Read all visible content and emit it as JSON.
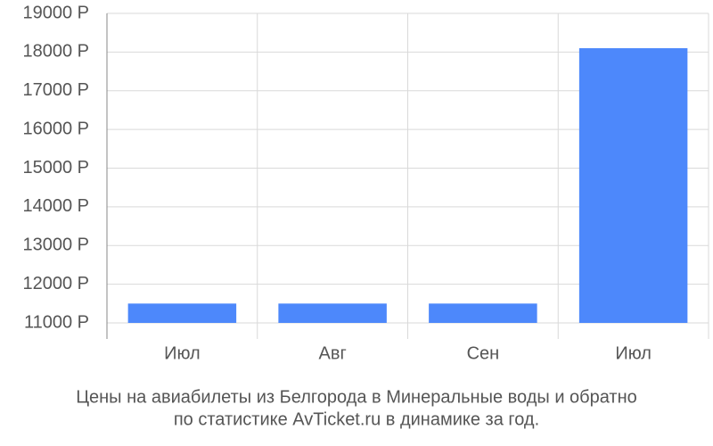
{
  "chart_data": {
    "type": "bar",
    "title": [
      "Цены на авиабилеты из Белгорода в Минеральные воды и обратно",
      "по статистике AvTicket.ru в динамике за год."
    ],
    "categories": [
      "Июл",
      "Авг",
      "Сен",
      "Июл"
    ],
    "values": [
      11500,
      11500,
      11500,
      18100
    ],
    "color": "#4d88fb",
    "ylim": [
      11000,
      19000
    ],
    "yticks": [
      {
        "value": 11000,
        "label": "11000 Р"
      },
      {
        "value": 12000,
        "label": "12000 Р"
      },
      {
        "value": 13000,
        "label": "13000 Р"
      },
      {
        "value": 14000,
        "label": "14000 Р"
      },
      {
        "value": 15000,
        "label": "15000 Р"
      },
      {
        "value": 16000,
        "label": "16000 Р"
      },
      {
        "value": 17000,
        "label": "17000 Р"
      },
      {
        "value": 18000,
        "label": "18000 Р"
      },
      {
        "value": 19000,
        "label": "19000 Р"
      }
    ],
    "grid": true
  }
}
